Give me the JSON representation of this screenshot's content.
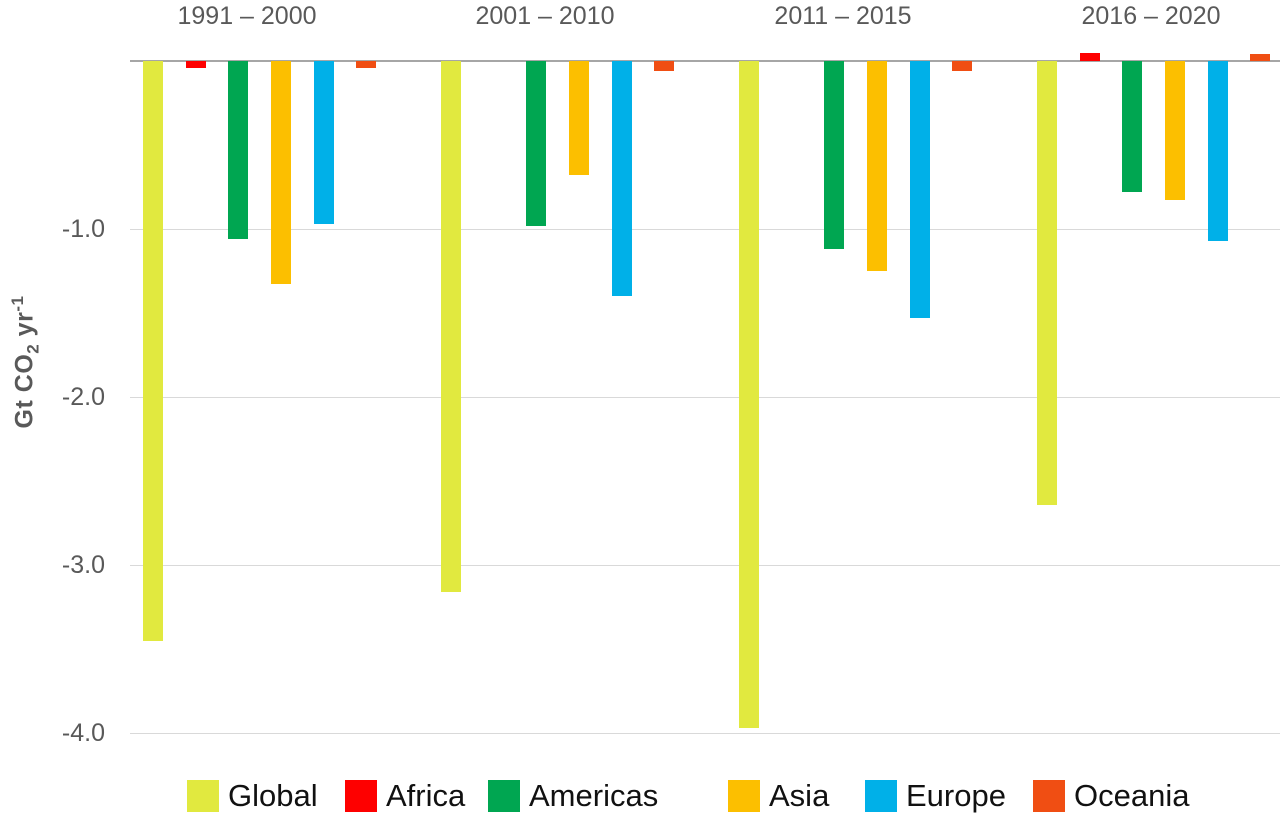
{
  "chart_data": {
    "type": "bar",
    "title": "",
    "categories": [
      "1991 – 2000",
      "2001 – 2010",
      "2011 – 2015",
      "2016 – 2020"
    ],
    "series": [
      {
        "name": "Global",
        "color": "#e1e93f",
        "values": [
          -3.45,
          -3.16,
          -3.97,
          -2.64
        ]
      },
      {
        "name": "Africa",
        "color": "#fe0000",
        "values": [
          -0.04,
          0.0,
          0.0,
          0.05
        ]
      },
      {
        "name": "Americas",
        "color": "#00a651",
        "values": [
          -1.06,
          -0.98,
          -1.12,
          -0.78
        ]
      },
      {
        "name": "Asia",
        "color": "#fcbf00",
        "values": [
          -1.33,
          -0.68,
          -1.25,
          -0.83
        ]
      },
      {
        "name": "Europe",
        "color": "#00b0e8",
        "values": [
          -0.97,
          -1.4,
          -1.53,
          -1.07
        ]
      },
      {
        "name": "Oceania",
        "color": "#f04e13",
        "values": [
          -0.04,
          -0.06,
          -0.06,
          0.04
        ]
      }
    ],
    "ylabel_parts": {
      "main": "Gt  CO",
      "sub": "2",
      "mid": " yr",
      "sup": "-1"
    },
    "yticks": [
      {
        "value": -1.0,
        "label": "-1.0"
      },
      {
        "value": -2.0,
        "label": "-2.0"
      },
      {
        "value": -3.0,
        "label": "-3.0"
      },
      {
        "value": -4.0,
        "label": "-4.0"
      }
    ],
    "ylim": [
      0.1,
      -4.15
    ],
    "grid": true,
    "legend_position": "bottom",
    "xlabel": "",
    "ylabel": "Gt CO2 yr-1"
  },
  "colors": {
    "axis_text": "#595959",
    "zero_line": "#a6a6a6",
    "gridline": "#d9d9d9",
    "legend_text": "#111111"
  }
}
